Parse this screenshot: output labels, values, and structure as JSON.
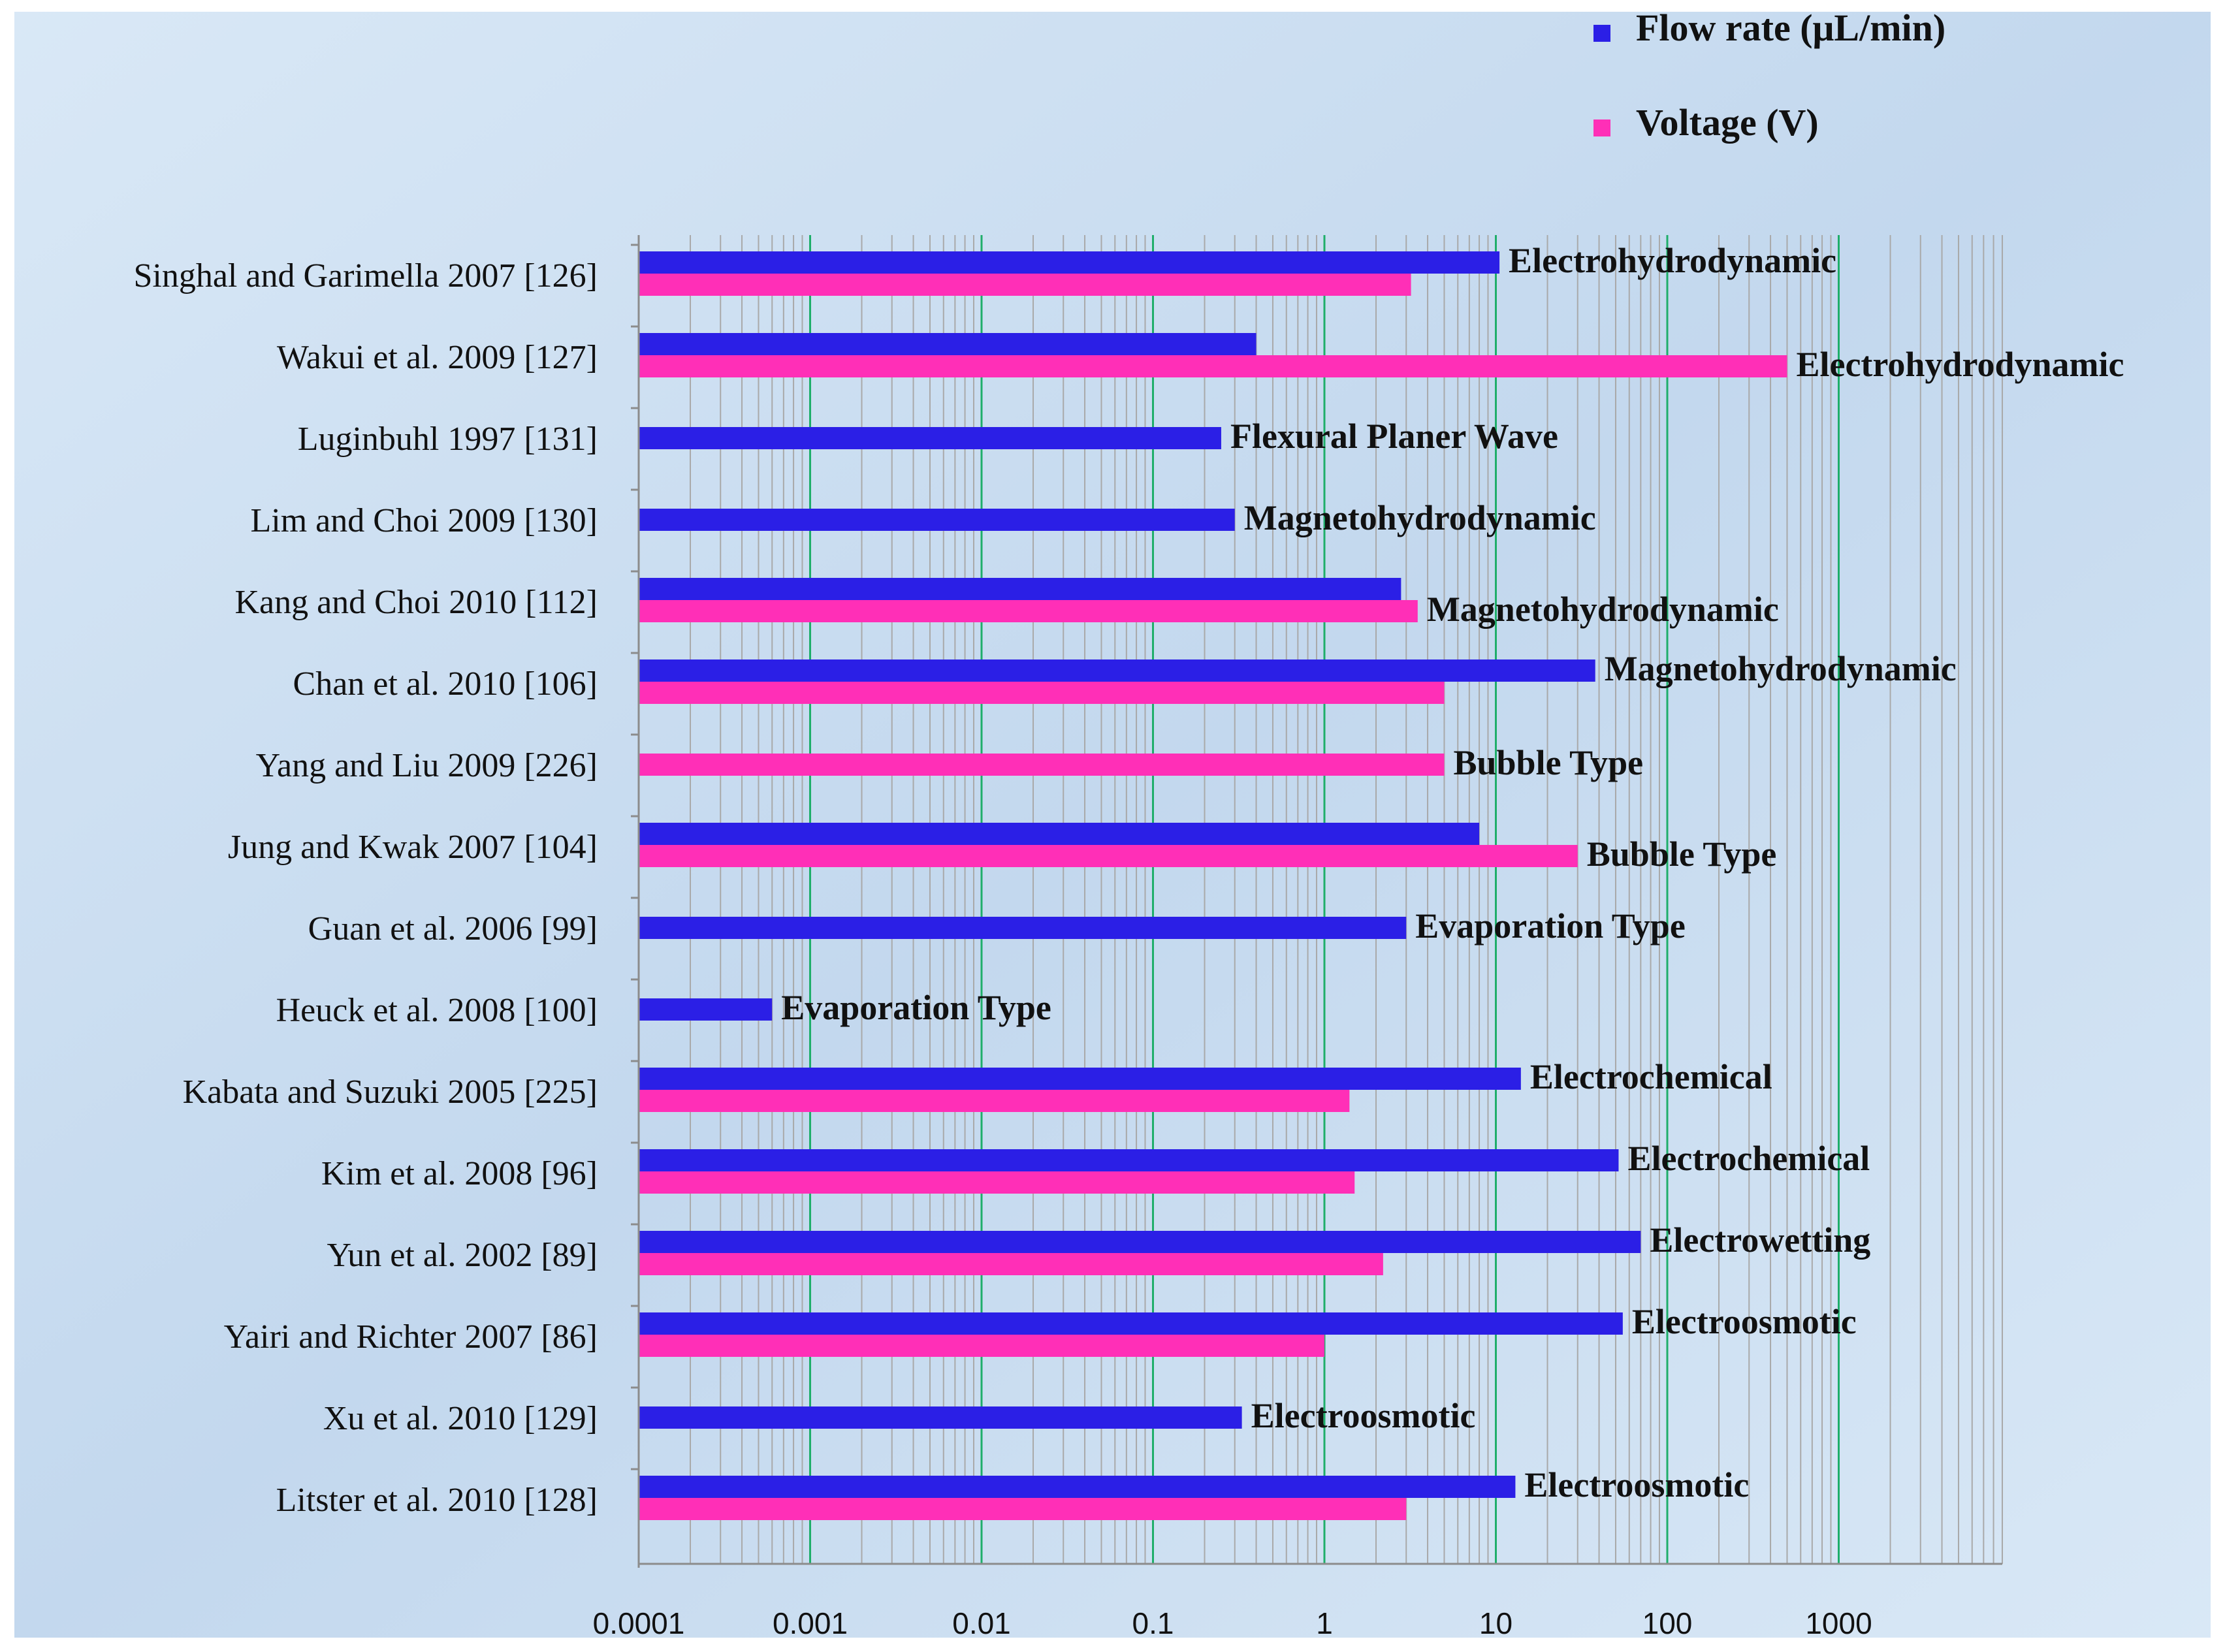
{
  "colors": {
    "flow": "#2b1fe6",
    "voltage": "#ff2fb7",
    "background": "#d9e8f6",
    "background_dark": "#c3d8ee",
    "major_grid": "#1fae6a",
    "minor_grid": "#a9a9a9",
    "axis": "#8c8c8c",
    "text": "#111111"
  },
  "chart_data": {
    "type": "bar",
    "orientation": "horizontal",
    "x_scale": "log",
    "xlim": [
      0.0001,
      10000
    ],
    "x_ticks": [
      "0.0001",
      "0.001",
      "0.01",
      "0.1",
      "1",
      "10",
      "100",
      "1000"
    ],
    "legend_position": "top-right",
    "grid": true,
    "series": [
      {
        "name": "Flow rate (μL/min)",
        "key": "flow"
      },
      {
        "name": "Voltage (V)",
        "key": "voltage"
      }
    ],
    "categories": [
      {
        "label": "Singhal and Garimella 2007 [126]",
        "flow": 10.5,
        "voltage": 3.2,
        "annotation": "Electrohydrodynamic",
        "anno_series": "flow"
      },
      {
        "label": "Wakui et al. 2009 [127]",
        "flow": 0.4,
        "voltage": 500,
        "annotation": "Electrohydrodynamic",
        "anno_series": "voltage"
      },
      {
        "label": "Luginbuhl 1997 [131]",
        "flow": 0.25,
        "voltage": null,
        "annotation": "Flexural Planer Wave",
        "anno_series": "flow"
      },
      {
        "label": "Lim and Choi 2009 [130]",
        "flow": 0.3,
        "voltage": null,
        "annotation": "Magnetohydrodynamic",
        "anno_series": "flow"
      },
      {
        "label": "Kang and Choi 2010 [112]",
        "flow": 2.8,
        "voltage": 3.5,
        "annotation": "Magnetohydrodynamic",
        "anno_series": "voltage"
      },
      {
        "label": "Chan et al. 2010 [106]",
        "flow": 38,
        "voltage": 5,
        "annotation": "Magnetohydrodynamic",
        "anno_series": "flow"
      },
      {
        "label": "Yang and Liu 2009 [226]",
        "flow": null,
        "voltage": 5,
        "annotation": "Bubble Type",
        "anno_series": "voltage"
      },
      {
        "label": "Jung and Kwak 2007 [104]",
        "flow": 8,
        "voltage": 30,
        "annotation": "Bubble Type",
        "anno_series": "voltage"
      },
      {
        "label": "Guan et al. 2006 [99]",
        "flow": 3,
        "voltage": null,
        "annotation": "Evaporation Type",
        "anno_series": "flow"
      },
      {
        "label": "Heuck et al. 2008 [100]",
        "flow": 0.0006,
        "voltage": null,
        "annotation": "Evaporation Type",
        "anno_series": "flow"
      },
      {
        "label": "Kabata and Suzuki 2005 [225]",
        "flow": 14,
        "voltage": 1.4,
        "annotation": "Electrochemical",
        "anno_series": "flow"
      },
      {
        "label": "Kim et al. 2008 [96]",
        "flow": 52,
        "voltage": 1.5,
        "annotation": "Electrochemical",
        "anno_series": "flow"
      },
      {
        "label": "Yun et al. 2002 [89]",
        "flow": 70,
        "voltage": 2.2,
        "annotation": "Electrowetting",
        "anno_series": "flow"
      },
      {
        "label": "Yairi and Richter 2007 [86]",
        "flow": 55,
        "voltage": 1,
        "annotation": "Electroosmotic",
        "anno_series": "flow"
      },
      {
        "label": "Xu et al. 2010 [129]",
        "flow": 0.33,
        "voltage": null,
        "annotation": "Electroosmotic",
        "anno_series": "flow"
      },
      {
        "label": "Litster et al. 2010 [128]",
        "flow": 13,
        "voltage": 3,
        "annotation": "Electroosmotic",
        "anno_series": "flow"
      }
    ]
  }
}
